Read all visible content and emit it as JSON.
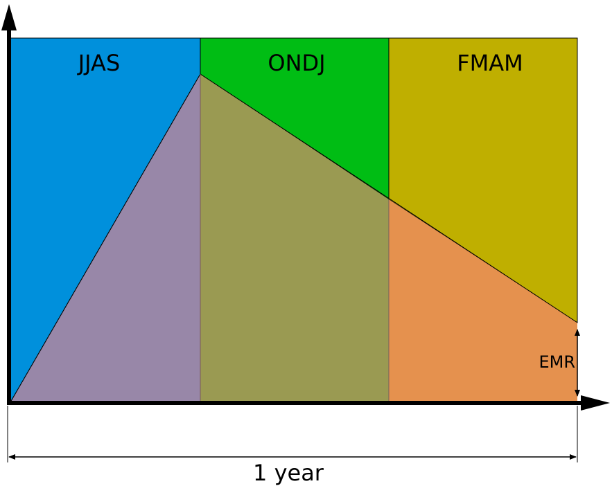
{
  "seasons": [
    {
      "label": "JJAS",
      "color": "#0090dc"
    },
    {
      "label": "ONDJ",
      "color": "#00bd14"
    },
    {
      "label": "FMAM",
      "color": "#bfaf00"
    }
  ],
  "regions": {
    "jjas_lower_color": "#9887a8",
    "ondj_lower_color": "#9a9a52",
    "fmam_lower_color": "#e5914e"
  },
  "annotations": {
    "emr_label": "EMR",
    "duration_label": "1 year"
  }
}
